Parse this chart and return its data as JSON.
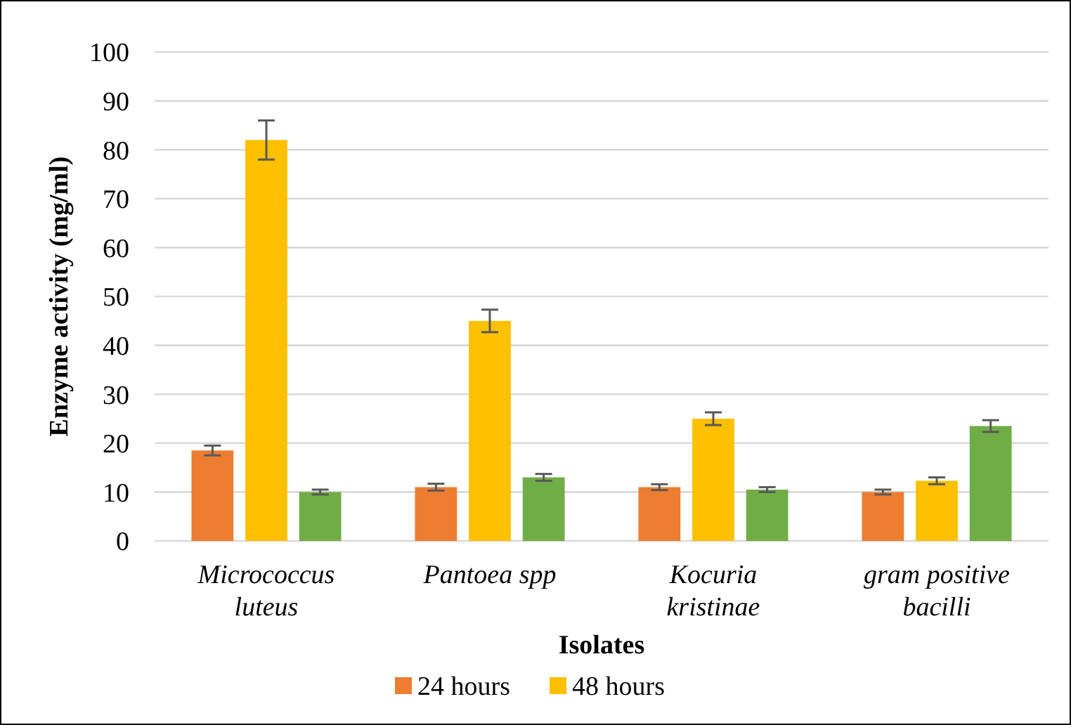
{
  "chart_data": {
    "type": "bar",
    "xlabel": "Isolates",
    "ylabel": "Enzyme activity (mg/ml)",
    "categories": [
      "Micrococcus luteus",
      "Pantoea spp",
      "Kocuria kristinae",
      "gram positive bacilli"
    ],
    "series": [
      {
        "name": "24 hours",
        "color": "#ed7d31",
        "values": [
          18.5,
          11,
          11,
          10
        ],
        "errors": [
          1,
          0.7,
          0.6,
          0.5
        ]
      },
      {
        "name": "48 hours",
        "color": "#ffc000",
        "values": [
          82,
          45,
          25,
          12.3
        ],
        "errors": [
          4,
          2.3,
          1.3,
          0.7
        ]
      },
      {
        "color": "#70ad47",
        "values": [
          10,
          13,
          10.5,
          23.5
        ],
        "errors": [
          0.5,
          0.7,
          0.5,
          1.2
        ]
      }
    ],
    "ylim": [
      0,
      100
    ],
    "yticks": [
      0,
      10,
      20,
      30,
      40,
      50,
      60,
      70,
      80,
      90,
      100
    ],
    "grid": "y",
    "legend": "bottom"
  }
}
